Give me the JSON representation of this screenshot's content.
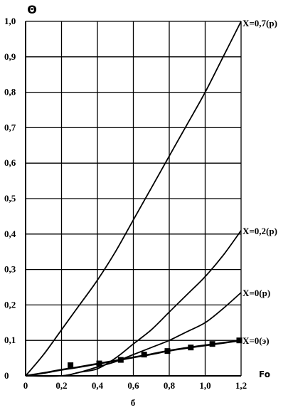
{
  "chart_data": {
    "type": "line",
    "y_axis_label": "Θ",
    "x_axis_label": "Fo",
    "caption": "б",
    "xlim": [
      0,
      1.2
    ],
    "ylim": [
      0,
      1.0
    ],
    "x_ticks": [
      "0",
      "0,2",
      "0,4",
      "0,6",
      "0,8",
      "1,0",
      "1,2"
    ],
    "y_ticks": [
      "0",
      "0,1",
      "0,2",
      "0,3",
      "0,4",
      "0,5",
      "0,6",
      "0,7",
      "0,8",
      "0,9",
      "1,0"
    ],
    "grid": true,
    "series": [
      {
        "name": "X=0,7(р)",
        "x": [
          0,
          0.1,
          0.2,
          0.3,
          0.4,
          0.5,
          0.6,
          0.7,
          0.8,
          0.9,
          1.0,
          1.1,
          1.2
        ],
        "y": [
          0,
          0.06,
          0.13,
          0.2,
          0.27,
          0.35,
          0.44,
          0.53,
          0.62,
          0.71,
          0.8,
          0.9,
          1.0
        ]
      },
      {
        "name": "X=0,2(р)",
        "x": [
          0,
          0.2,
          0.3,
          0.4,
          0.5,
          0.6,
          0.7,
          0.8,
          0.9,
          1.0,
          1.1,
          1.2
        ],
        "y": [
          0,
          0.0,
          0.01,
          0.02,
          0.05,
          0.09,
          0.13,
          0.18,
          0.23,
          0.28,
          0.34,
          0.41
        ]
      },
      {
        "name": "X=0(р)",
        "x": [
          0,
          0.2,
          0.3,
          0.4,
          0.5,
          0.6,
          0.7,
          0.8,
          0.9,
          1.0,
          1.1,
          1.2
        ],
        "y": [
          0,
          0.0,
          0.01,
          0.025,
          0.04,
          0.06,
          0.08,
          0.1,
          0.125,
          0.15,
          0.19,
          0.235
        ]
      },
      {
        "name": "X=0(э)",
        "x": [
          0,
          0.1,
          0.2,
          0.3,
          0.4,
          0.5,
          0.6,
          0.7,
          0.8,
          0.9,
          1.0,
          1.1,
          1.2
        ],
        "y": [
          0,
          0.008,
          0.017,
          0.025,
          0.034,
          0.043,
          0.052,
          0.061,
          0.071,
          0.079,
          0.086,
          0.093,
          0.1
        ],
        "markers": {
          "x": [
            0.25,
            0.41,
            0.53,
            0.66,
            0.79,
            0.92,
            1.04,
            1.19
          ],
          "y": [
            0.03,
            0.035,
            0.045,
            0.06,
            0.07,
            0.08,
            0.09,
            0.1
          ]
        }
      }
    ]
  }
}
